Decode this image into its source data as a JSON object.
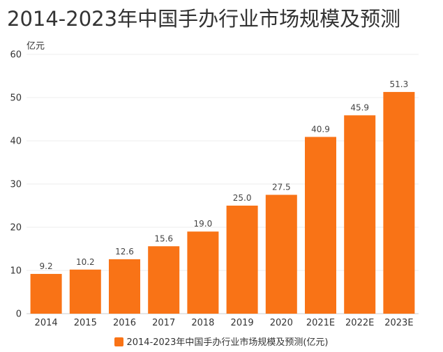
{
  "chart_data": {
    "type": "bar",
    "title": "2014-2023年中国手办行业市场规模及预测",
    "ylabel": "亿元",
    "xlabel": "",
    "categories": [
      "2014",
      "2015",
      "2016",
      "2017",
      "2018",
      "2019",
      "2020",
      "2021E",
      "2022E",
      "2023E"
    ],
    "series": [
      {
        "name": "2014-2023年中国手办行业市场规模及预测(亿元)",
        "values": [
          9.2,
          10.2,
          12.6,
          15.6,
          19.0,
          25.0,
          27.5,
          40.9,
          45.9,
          51.3
        ],
        "labels": [
          "9.2",
          "10.2",
          "12.6",
          "15.6",
          "19.0",
          "25.0",
          "27.5",
          "40.9",
          "45.9",
          "51.3"
        ],
        "color": "#F97316"
      }
    ],
    "ylim": [
      0,
      60
    ],
    "yticks": [
      "0",
      "10",
      "20",
      "30",
      "40",
      "50",
      "60"
    ],
    "grid": true,
    "legend_position": "bottom"
  }
}
